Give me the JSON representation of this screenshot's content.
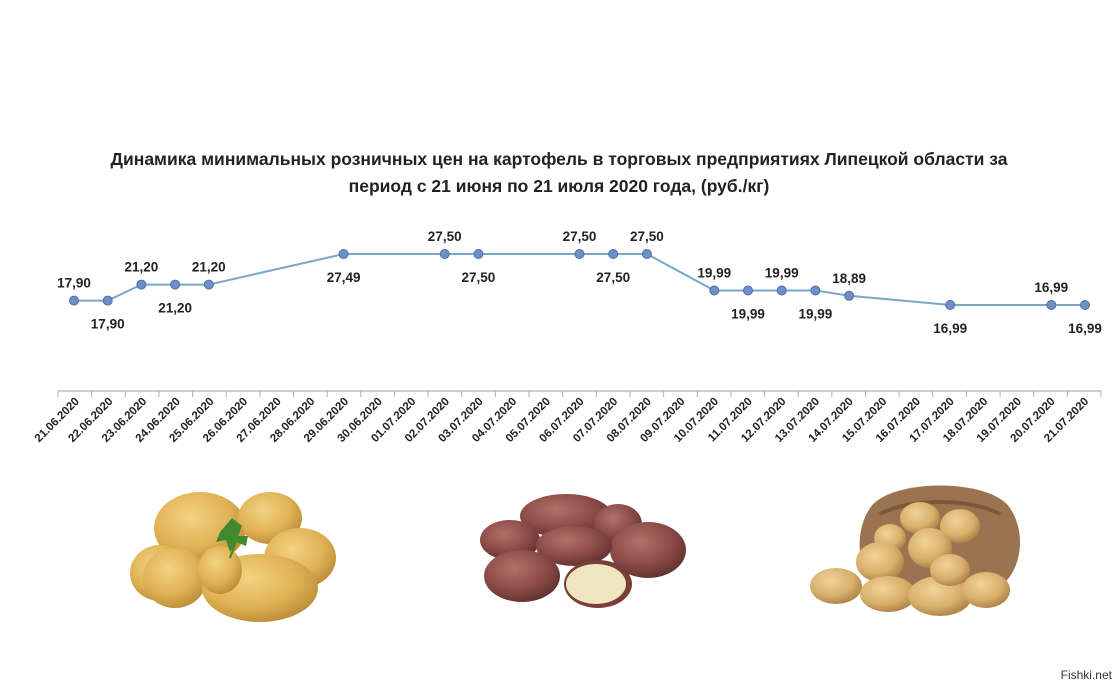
{
  "chart_data": {
    "type": "line",
    "title": "Динамика минимальных розничных цен на картофель в торговых предприятиях Липецкой области за период с 21 июня по 21 июля 2020  года, (руб./кг)",
    "title_lines": [
      "Динамика минимальных розничных цен на картофель в торговых предприятиях Липецкой области за",
      "период с 21 июня по 21 июля 2020  года, (руб./кг)"
    ],
    "xlabel": "",
    "ylabel": "",
    "categories": [
      "21.06.2020",
      "22.06.2020",
      "23.06.2020",
      "24.06.2020",
      "25.06.2020",
      "26.06.2020",
      "27.06.2020",
      "28.06.2020",
      "29.06.2020",
      "30.06.2020",
      "01.07.2020",
      "02.07.2020",
      "03.07.2020",
      "04.07.2020",
      "05.07.2020",
      "06.07.2020",
      "07.07.2020",
      "08.07.2020",
      "09.07.2020",
      "10.07.2020",
      "11.07.2020",
      "12.07.2020",
      "13.07.2020",
      "14.07.2020",
      "15.07.2020",
      "16.07.2020",
      "17.07.2020",
      "18.07.2020",
      "19.07.2020",
      "20.07.2020",
      "21.07.2020"
    ],
    "series": [
      {
        "values": [
          17.9,
          17.9,
          21.2,
          21.2,
          21.2,
          null,
          null,
          null,
          27.49,
          null,
          null,
          27.5,
          27.5,
          null,
          null,
          27.5,
          27.5,
          27.5,
          null,
          19.99,
          19.99,
          19.99,
          19.99,
          18.89,
          null,
          null,
          16.99,
          null,
          null,
          16.99,
          16.99
        ],
        "labels": [
          "17,90",
          "17,90",
          "21,20",
          "21,20",
          "21,20",
          null,
          null,
          null,
          "27,49",
          null,
          null,
          "27,50",
          "27,50",
          null,
          null,
          "27,50",
          "27,50",
          "27,50",
          null,
          "19,99",
          "19,99",
          "19,99",
          "19,99",
          "18,89",
          null,
          null,
          "16,99",
          null,
          null,
          "16,99",
          "16,99"
        ],
        "label_pos": [
          "above",
          "below",
          "above",
          "below",
          "above",
          null,
          null,
          null,
          "below",
          null,
          null,
          "above",
          "below",
          null,
          null,
          "above",
          "below",
          "above",
          null,
          "above",
          "below",
          "above",
          "below",
          "above",
          null,
          null,
          "below",
          null,
          null,
          "above",
          "below"
        ],
        "color": "#7aa6c8",
        "marker_color": "#6f8fc8"
      }
    ],
    "grid": false,
    "legend": "none"
  },
  "watermark": "Fishki.net",
  "pictures": [
    {
      "name": "yellow-potatoes-with-parsley"
    },
    {
      "name": "red-potatoes-with-cut-half"
    },
    {
      "name": "potatoes-in-burlap-sack"
    }
  ]
}
